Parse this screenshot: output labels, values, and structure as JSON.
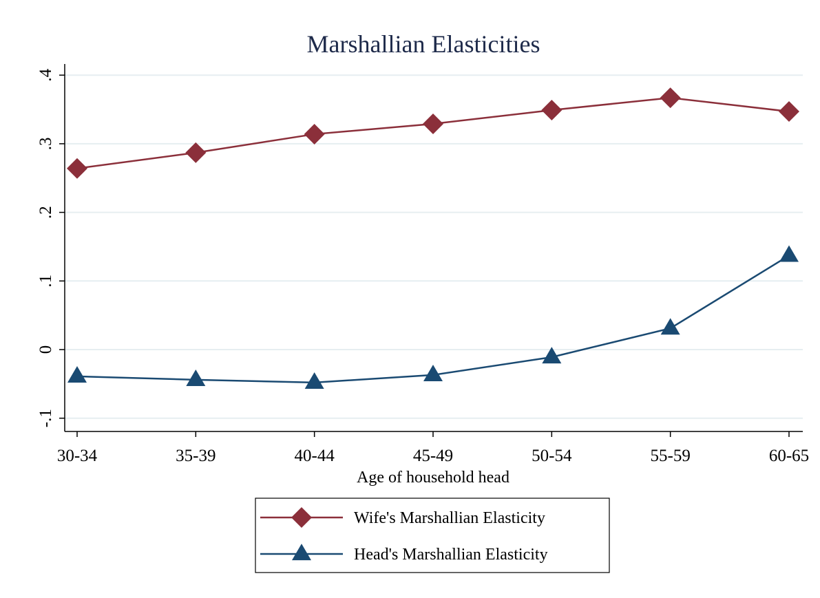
{
  "chart_data": {
    "type": "line",
    "title": "Marshallian Elasticities",
    "xlabel": "Age of household head",
    "ylabel": "",
    "categories": [
      "30-34",
      "35-39",
      "40-44",
      "45-49",
      "50-54",
      "55-59",
      "60-65"
    ],
    "yticks": [
      "-.1",
      "0",
      ".1",
      ".2",
      ".3",
      ".4"
    ],
    "ylim": [
      -0.12,
      0.41
    ],
    "grid": true,
    "legend_position": "bottom",
    "series": [
      {
        "name": "Wife's Marshallian Elasticity",
        "values": [
          0.264,
          0.287,
          0.314,
          0.329,
          0.349,
          0.367,
          0.347
        ],
        "color": "#8b2f3a",
        "marker": "diamond"
      },
      {
        "name": "Head's Marshallian Elasticity",
        "values": [
          -0.039,
          -0.044,
          -0.048,
          -0.037,
          -0.011,
          0.031,
          0.137
        ],
        "color": "#1a4a72",
        "marker": "triangle"
      }
    ]
  }
}
